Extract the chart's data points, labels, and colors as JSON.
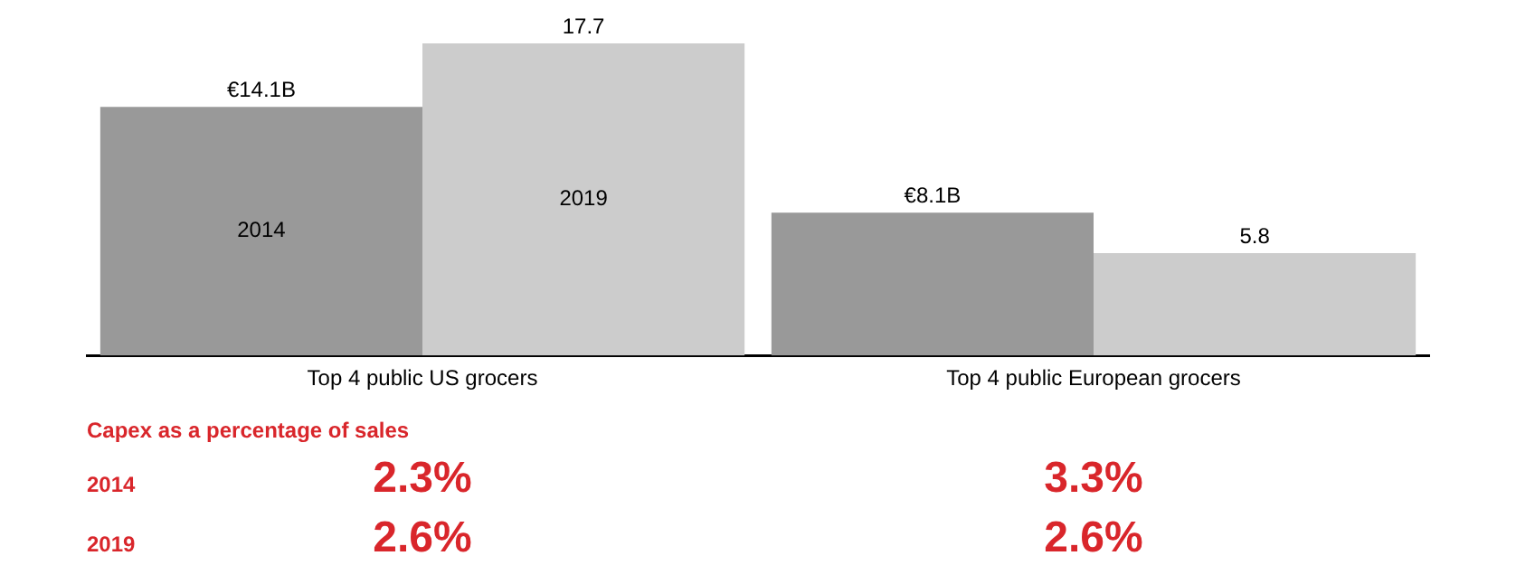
{
  "chart_data": {
    "type": "bar",
    "categories": [
      "Top 4 public US grocers",
      "Top 4 public European grocers"
    ],
    "series": [
      {
        "name": "2014",
        "color": "#999999",
        "values": [
          14.1,
          8.1
        ],
        "value_labels": [
          "€14.1B",
          "€8.1B"
        ]
      },
      {
        "name": "2019",
        "color": "#cccccc",
        "values": [
          17.7,
          5.8
        ],
        "value_labels": [
          "17.7",
          "5.8"
        ]
      }
    ],
    "annotations": [
      "Capex as a percentage of sales",
      "2014",
      "2.3%",
      "3.3%",
      "2019",
      "2.6%",
      "2.6%"
    ],
    "grid": false,
    "legend": false
  }
}
